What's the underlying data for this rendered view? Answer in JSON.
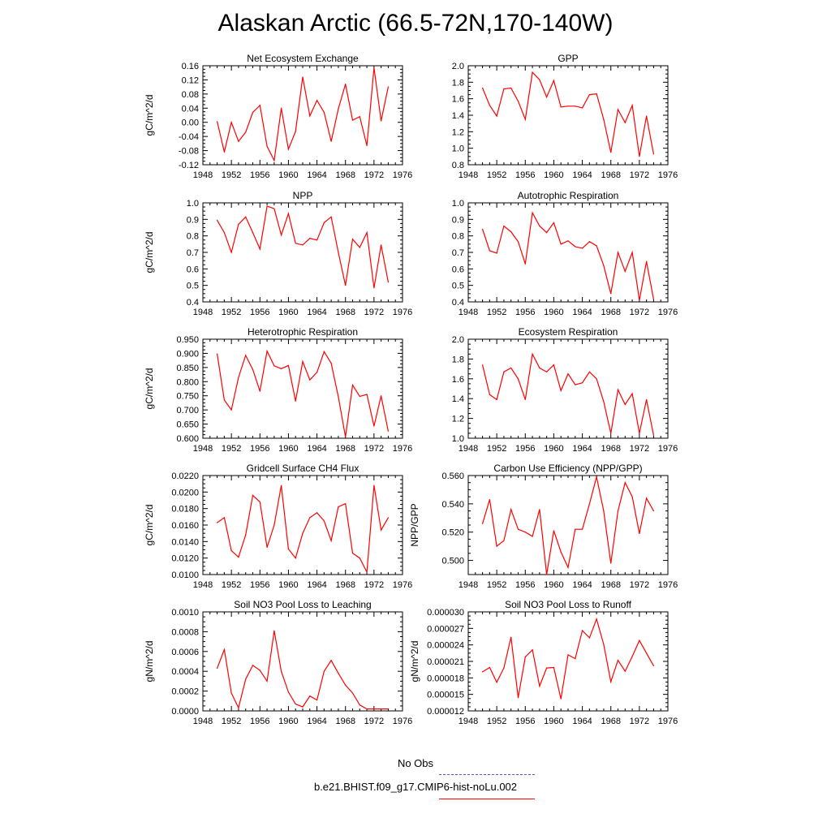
{
  "title": "Alaskan Arctic (66.5-72N,170-140W)",
  "colors": {
    "series": "#ff0000",
    "axis": "#000000",
    "obs": "#5555cc"
  },
  "legend": {
    "obs_label": "No Obs",
    "model_label": "b.e21.BHIST.f09_g17.CMIP6-hist-noLu.002"
  },
  "chart_data": [
    {
      "type": "line",
      "title": "Net Ecosystem Exchange",
      "ylabel": "gC/m^2/d",
      "xlim": [
        1948,
        1976
      ],
      "xticks": [
        1948,
        1952,
        1956,
        1960,
        1964,
        1968,
        1972,
        1976
      ],
      "ylim": [
        -0.12,
        0.16
      ],
      "yticks": [
        "-0.12",
        "-0.08",
        "-0.04",
        "0.00",
        "0.04",
        "0.08",
        "0.12",
        "0.16"
      ],
      "grid": false,
      "series": [
        {
          "x": [
            1950,
            1951,
            1952,
            1953,
            1954,
            1955,
            1956,
            1957,
            1958,
            1959,
            1960,
            1961,
            1962,
            1963,
            1964,
            1965,
            1966,
            1967,
            1968,
            1969,
            1970,
            1971,
            1972,
            1973,
            1974
          ],
          "values": [
            0.002,
            -0.084,
            0.0,
            -0.054,
            -0.028,
            0.028,
            0.048,
            -0.068,
            -0.108,
            0.04,
            -0.076,
            -0.026,
            0.128,
            0.018,
            0.062,
            0.028,
            -0.054,
            0.038,
            0.108,
            0.006,
            0.016,
            -0.066,
            0.154,
            0.004,
            0.1
          ]
        }
      ]
    },
    {
      "type": "line",
      "title": "GPP",
      "ylabel": "",
      "xlim": [
        1948,
        1976
      ],
      "xticks": [
        1948,
        1952,
        1956,
        1960,
        1964,
        1968,
        1972,
        1976
      ],
      "ylim": [
        0.8,
        2.0
      ],
      "yticks": [
        "0.8",
        "1.0",
        "1.2",
        "1.4",
        "1.6",
        "1.8",
        "2.0"
      ],
      "grid": false,
      "series": [
        {
          "x": [
            1950,
            1951,
            1952,
            1953,
            1954,
            1955,
            1956,
            1957,
            1958,
            1959,
            1960,
            1961,
            1962,
            1963,
            1964,
            1965,
            1966,
            1967,
            1968,
            1969,
            1970,
            1971,
            1972,
            1973,
            1974
          ],
          "values": [
            1.73,
            1.52,
            1.39,
            1.72,
            1.73,
            1.57,
            1.35,
            1.92,
            1.83,
            1.62,
            1.82,
            1.5,
            1.51,
            1.51,
            1.49,
            1.65,
            1.66,
            1.35,
            0.95,
            1.47,
            1.31,
            1.52,
            0.9,
            1.39,
            0.93
          ]
        }
      ]
    },
    {
      "type": "line",
      "title": "NPP",
      "ylabel": "gC/m^2/d",
      "xlim": [
        1948,
        1976
      ],
      "xticks": [
        1948,
        1952,
        1956,
        1960,
        1964,
        1968,
        1972,
        1976
      ],
      "ylim": [
        0.4,
        1.0
      ],
      "yticks": [
        "0.4",
        "0.5",
        "0.6",
        "0.7",
        "0.8",
        "0.9",
        "1.0"
      ],
      "grid": false,
      "series": [
        {
          "x": [
            1950,
            1951,
            1952,
            1953,
            1954,
            1955,
            1956,
            1957,
            1958,
            1959,
            1960,
            1961,
            1962,
            1963,
            1964,
            1965,
            1966,
            1967,
            1968,
            1969,
            1970,
            1971,
            1972,
            1973,
            1974
          ],
          "values": [
            0.895,
            0.82,
            0.7,
            0.87,
            0.915,
            0.82,
            0.72,
            0.98,
            0.965,
            0.805,
            0.935,
            0.755,
            0.745,
            0.785,
            0.775,
            0.88,
            0.915,
            0.7,
            0.5,
            0.78,
            0.73,
            0.82,
            0.485,
            0.745,
            0.52
          ]
        }
      ]
    },
    {
      "type": "line",
      "title": "Autotrophic Respiration",
      "ylabel": "",
      "xlim": [
        1948,
        1976
      ],
      "xticks": [
        1948,
        1952,
        1956,
        1960,
        1964,
        1968,
        1972,
        1976
      ],
      "ylim": [
        0.4,
        1.0
      ],
      "yticks": [
        "0.4",
        "0.5",
        "0.6",
        "0.7",
        "0.8",
        "0.9",
        "1.0"
      ],
      "grid": false,
      "series": [
        {
          "x": [
            1950,
            1951,
            1952,
            1953,
            1954,
            1955,
            1956,
            1957,
            1958,
            1959,
            1960,
            1961,
            1962,
            1963,
            1964,
            1965,
            1966,
            1967,
            1968,
            1969,
            1970,
            1971,
            1972,
            1973,
            1974
          ],
          "values": [
            0.84,
            0.71,
            0.695,
            0.86,
            0.825,
            0.765,
            0.63,
            0.94,
            0.86,
            0.82,
            0.88,
            0.75,
            0.77,
            0.735,
            0.725,
            0.765,
            0.74,
            0.62,
            0.45,
            0.7,
            0.585,
            0.7,
            0.41,
            0.645,
            0.415
          ]
        }
      ]
    },
    {
      "type": "line",
      "title": "Heterotrophic Respiration",
      "ylabel": "gC/m^2/d",
      "xlim": [
        1948,
        1976
      ],
      "xticks": [
        1948,
        1952,
        1956,
        1960,
        1964,
        1968,
        1972,
        1976
      ],
      "ylim": [
        0.6,
        0.95
      ],
      "yticks": [
        "0.600",
        "0.650",
        "0.700",
        "0.750",
        "0.800",
        "0.850",
        "0.900",
        "0.950"
      ],
      "grid": false,
      "series": [
        {
          "x": [
            1950,
            1951,
            1952,
            1953,
            1954,
            1955,
            1956,
            1957,
            1958,
            1959,
            1960,
            1961,
            1962,
            1963,
            1964,
            1965,
            1966,
            1967,
            1968,
            1969,
            1970,
            1971,
            1972,
            1973,
            1974
          ],
          "values": [
            0.898,
            0.735,
            0.7,
            0.815,
            0.893,
            0.843,
            0.766,
            0.908,
            0.856,
            0.846,
            0.857,
            0.731,
            0.871,
            0.806,
            0.833,
            0.906,
            0.865,
            0.747,
            0.605,
            0.788,
            0.748,
            0.755,
            0.643,
            0.75,
            0.625
          ]
        }
      ]
    },
    {
      "type": "line",
      "title": "Ecosystem Respiration",
      "ylabel": "",
      "xlim": [
        1948,
        1976
      ],
      "xticks": [
        1948,
        1952,
        1956,
        1960,
        1964,
        1968,
        1972,
        1976
      ],
      "ylim": [
        1.0,
        2.0
      ],
      "yticks": [
        "1.0",
        "1.2",
        "1.4",
        "1.6",
        "1.8",
        "2.0"
      ],
      "grid": false,
      "series": [
        {
          "x": [
            1950,
            1951,
            1952,
            1953,
            1954,
            1955,
            1956,
            1957,
            1958,
            1959,
            1960,
            1961,
            1962,
            1963,
            1964,
            1965,
            1966,
            1967,
            1968,
            1969,
            1970,
            1971,
            1972,
            1973,
            1974
          ],
          "values": [
            1.74,
            1.44,
            1.39,
            1.67,
            1.71,
            1.6,
            1.39,
            1.85,
            1.71,
            1.67,
            1.74,
            1.48,
            1.65,
            1.54,
            1.56,
            1.67,
            1.6,
            1.37,
            1.05,
            1.49,
            1.34,
            1.45,
            1.05,
            1.39,
            1.03
          ]
        }
      ]
    },
    {
      "type": "line",
      "title": "Gridcell Surface CH4 Flux",
      "ylabel": "gC/m^2/d",
      "xlim": [
        1948,
        1976
      ],
      "xticks": [
        1948,
        1952,
        1956,
        1960,
        1964,
        1968,
        1972,
        1976
      ],
      "ylim": [
        0.01,
        0.022
      ],
      "yticks": [
        "0.0100",
        "0.0120",
        "0.0140",
        "0.0160",
        "0.0180",
        "0.0200",
        "0.0220"
      ],
      "grid": false,
      "series": [
        {
          "x": [
            1950,
            1951,
            1952,
            1953,
            1954,
            1955,
            1956,
            1957,
            1958,
            1959,
            1960,
            1961,
            1962,
            1963,
            1964,
            1965,
            1966,
            1967,
            1968,
            1969,
            1970,
            1971,
            1972,
            1973,
            1974
          ],
          "values": [
            0.0163,
            0.0169,
            0.0129,
            0.0121,
            0.0148,
            0.0196,
            0.0188,
            0.0133,
            0.016,
            0.0208,
            0.0131,
            0.012,
            0.015,
            0.0169,
            0.0175,
            0.0165,
            0.0141,
            0.0182,
            0.0186,
            0.0126,
            0.012,
            0.0103,
            0.0208,
            0.0154,
            0.0169
          ]
        }
      ]
    },
    {
      "type": "line",
      "title": "Carbon Use Efficiency (NPP/GPP)",
      "ylabel": "NPP/GPP",
      "xlim": [
        1948,
        1976
      ],
      "xticks": [
        1948,
        1952,
        1956,
        1960,
        1964,
        1968,
        1972,
        1976
      ],
      "ylim": [
        0.49,
        0.56
      ],
      "yticks": [
        "0.500",
        "0.520",
        "0.540",
        "0.560"
      ],
      "grid": false,
      "series": [
        {
          "x": [
            1950,
            1951,
            1952,
            1953,
            1954,
            1955,
            1956,
            1957,
            1958,
            1959,
            1960,
            1961,
            1962,
            1963,
            1964,
            1965,
            1966,
            1967,
            1968,
            1969,
            1970,
            1971,
            1972,
            1973,
            1974
          ],
          "values": [
            0.526,
            0.543,
            0.51,
            0.514,
            0.536,
            0.522,
            0.52,
            0.517,
            0.536,
            0.49,
            0.521,
            0.506,
            0.495,
            0.522,
            0.522,
            0.54,
            0.559,
            0.535,
            0.498,
            0.535,
            0.555,
            0.545,
            0.519,
            0.544,
            0.535
          ]
        }
      ]
    },
    {
      "type": "line",
      "title": "Soil NO3 Pool Loss to Leaching",
      "ylabel": "gN/m^2/d",
      "xlim": [
        1948,
        1976
      ],
      "xticks": [
        1948,
        1952,
        1956,
        1960,
        1964,
        1968,
        1972,
        1976
      ],
      "ylim": [
        0.0,
        0.001
      ],
      "yticks": [
        "0.0000",
        "0.0002",
        "0.0004",
        "0.0006",
        "0.0008",
        "0.0010"
      ],
      "grid": false,
      "series": [
        {
          "x": [
            1950,
            1951,
            1952,
            1953,
            1954,
            1955,
            1956,
            1957,
            1958,
            1959,
            1960,
            1961,
            1962,
            1963,
            1964,
            1965,
            1966,
            1967,
            1968,
            1969,
            1970,
            1971,
            1972,
            1973,
            1974
          ],
          "values": [
            0.00043,
            0.00062,
            0.00018,
            3e-05,
            0.00032,
            0.00046,
            0.00041,
            0.0003,
            0.00081,
            0.0004,
            0.00019,
            7e-05,
            4e-05,
            0.00015,
            0.00011,
            0.0004,
            0.00051,
            0.00038,
            0.00026,
            0.00018,
            6e-05,
            2e-05,
            2e-05,
            2e-05,
            2e-05
          ]
        }
      ]
    },
    {
      "type": "line",
      "title": "Soil NO3 Pool Loss to Runoff",
      "ylabel": "gN/m^2/d",
      "xlim": [
        1948,
        1976
      ],
      "xticks": [
        1948,
        1952,
        1956,
        1960,
        1964,
        1968,
        1972,
        1976
      ],
      "ylim": [
        1.2e-05,
        3e-05
      ],
      "yticks": [
        "0.000012",
        "0.000015",
        "0.000018",
        "0.000021",
        "0.000024",
        "0.000027",
        "0.000030"
      ],
      "grid": false,
      "series": [
        {
          "x": [
            1950,
            1951,
            1952,
            1953,
            1954,
            1955,
            1956,
            1957,
            1958,
            1959,
            1960,
            1961,
            1962,
            1963,
            1964,
            1965,
            1966,
            1967,
            1968,
            1969,
            1970,
            1971,
            1972,
            1973,
            1974
          ],
          "values": [
            1.91e-05,
            1.99e-05,
            1.72e-05,
            1.98e-05,
            2.54e-05,
            1.44e-05,
            2.18e-05,
            2.31e-05,
            1.65e-05,
            1.98e-05,
            1.99e-05,
            1.42e-05,
            2.22e-05,
            2.15e-05,
            2.66e-05,
            2.53e-05,
            2.87e-05,
            2.41e-05,
            1.73e-05,
            2.12e-05,
            1.92e-05,
            2.19e-05,
            2.48e-05,
            2.25e-05,
            2.02e-05
          ]
        }
      ]
    }
  ]
}
